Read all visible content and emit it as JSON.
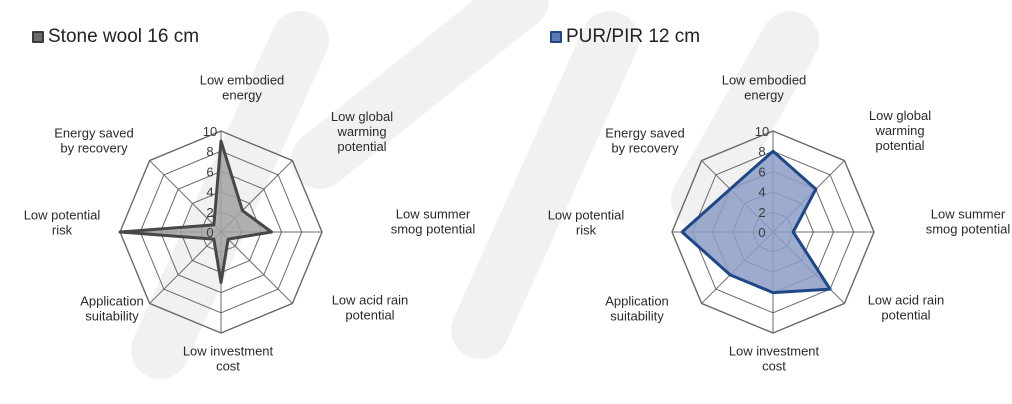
{
  "chart_data": [
    {
      "type": "radar",
      "title": "",
      "legend_position": "top-left",
      "categories": [
        "Low embodied energy",
        "Low global warming potential",
        "Low summer smog potential",
        "Low acid rain potential",
        "Low investment cost",
        "Application suitability",
        "Low potential risk",
        "Energy saved by recovery"
      ],
      "category_lines": [
        [
          "Low embodied",
          "energy"
        ],
        [
          "Low global",
          "warming",
          "potential"
        ],
        [
          "Low summer",
          "smog potential"
        ],
        [
          "Low acid rain",
          "potential"
        ],
        [
          "Low investment",
          "cost"
        ],
        [
          "Application",
          "suitability"
        ],
        [
          "Low potential",
          "risk"
        ],
        [
          "Energy saved",
          "by recovery"
        ]
      ],
      "rlim": [
        0,
        10
      ],
      "ticks": [
        "0",
        "2",
        "4",
        "6",
        "8",
        "10"
      ],
      "series": [
        {
          "name": "Stone wool 16 cm",
          "values": [
            9,
            3,
            5,
            1,
            5,
            1,
            10,
            1
          ],
          "color": "#a3a3a3",
          "stroke": "#474747"
        }
      ]
    },
    {
      "type": "radar",
      "title": "",
      "legend_position": "top-left",
      "categories": [
        "Low embodied energy",
        "Low global warming potential",
        "Low summer smog potential",
        "Low acid rain potential",
        "Low investment cost",
        "Application suitability",
        "Low potential risk",
        "Energy saved by recovery"
      ],
      "category_lines": [
        [
          "Low embodied",
          "energy"
        ],
        [
          "Low global",
          "warming",
          "potential"
        ],
        [
          "Low summer",
          "smog potential"
        ],
        [
          "Low acid rain",
          "potential"
        ],
        [
          "Low investment",
          "cost"
        ],
        [
          "Application",
          "suitability"
        ],
        [
          "Low potential",
          "risk"
        ],
        [
          "Energy saved",
          "by recovery"
        ]
      ],
      "rlim": [
        0,
        10
      ],
      "ticks": [
        "0",
        "2",
        "4",
        "6",
        "8",
        "10"
      ],
      "series": [
        {
          "name": "PUR/PIR 12 cm",
          "values": [
            8,
            6,
            2,
            8,
            6,
            6,
            9,
            6
          ],
          "color": "#8c9ec6",
          "stroke": "#1f4787"
        }
      ]
    }
  ]
}
